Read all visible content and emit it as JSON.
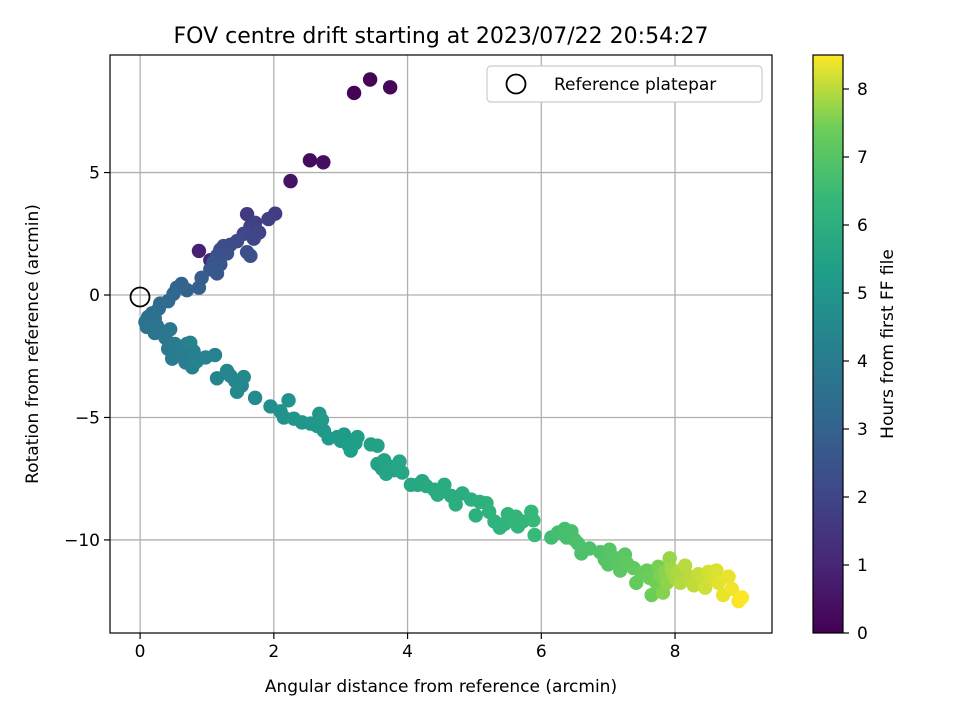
{
  "chart_data": {
    "type": "scatter",
    "title": "FOV centre drift starting at 2023/07/22 20:54:27",
    "xlabel": "Angular distance from reference (arcmin)",
    "ylabel": "Rotation from reference (arcmin)",
    "xlim": [
      -0.45,
      9.45
    ],
    "ylim": [
      -13.8,
      9.8
    ],
    "xticks": [
      0,
      2,
      4,
      6,
      8
    ],
    "xtick_labels": [
      "0",
      "2",
      "4",
      "6",
      "8"
    ],
    "yticks": [
      -10,
      -5,
      0,
      5
    ],
    "ytick_labels": [
      "−10",
      "−5",
      "0",
      "5"
    ],
    "grid": true,
    "legend": {
      "location": "upper right",
      "entries": [
        "Reference platepar"
      ]
    },
    "reference_point": {
      "name": "Reference platepar",
      "x": 0,
      "y": 0
    },
    "colorbar": {
      "label": "Hours from first FF file",
      "colormap": "viridis",
      "range": [
        0,
        8.5
      ],
      "ticks": [
        0,
        1,
        2,
        3,
        4,
        5,
        6,
        7,
        8
      ],
      "tick_labels": [
        "0",
        "1",
        "2",
        "3",
        "4",
        "5",
        "6",
        "7",
        "8"
      ]
    },
    "points": [
      {
        "x": 3.2,
        "y": 8.25,
        "t": 0.05
      },
      {
        "x": 3.44,
        "y": 8.8,
        "t": 0.1
      },
      {
        "x": 3.74,
        "y": 8.48,
        "t": 0.15
      },
      {
        "x": 2.54,
        "y": 5.5,
        "t": 0.3
      },
      {
        "x": 2.74,
        "y": 5.42,
        "t": 0.35
      },
      {
        "x": 2.25,
        "y": 4.65,
        "t": 0.45
      },
      {
        "x": 0.88,
        "y": 1.8,
        "t": 0.9
      },
      {
        "x": 1.05,
        "y": 1.42,
        "t": 1.0
      },
      {
        "x": 1.6,
        "y": 3.3,
        "t": 1.6
      },
      {
        "x": 2.02,
        "y": 3.32,
        "t": 1.75
      },
      {
        "x": 1.92,
        "y": 3.1,
        "t": 1.8
      },
      {
        "x": 1.72,
        "y": 2.95,
        "t": 1.85
      },
      {
        "x": 1.65,
        "y": 2.8,
        "t": 1.9
      },
      {
        "x": 1.78,
        "y": 2.55,
        "t": 2.0
      },
      {
        "x": 1.7,
        "y": 2.3,
        "t": 2.05
      },
      {
        "x": 1.55,
        "y": 2.5,
        "t": 2.1
      },
      {
        "x": 1.45,
        "y": 2.2,
        "t": 2.15
      },
      {
        "x": 1.35,
        "y": 2.05,
        "t": 2.2
      },
      {
        "x": 1.25,
        "y": 2.0,
        "t": 2.25
      },
      {
        "x": 1.2,
        "y": 1.85,
        "t": 2.3
      },
      {
        "x": 1.6,
        "y": 1.75,
        "t": 2.3
      },
      {
        "x": 1.65,
        "y": 1.6,
        "t": 2.35
      },
      {
        "x": 1.3,
        "y": 1.7,
        "t": 2.4
      },
      {
        "x": 1.15,
        "y": 1.6,
        "t": 2.45
      },
      {
        "x": 1.1,
        "y": 1.35,
        "t": 2.5
      },
      {
        "x": 1.2,
        "y": 1.25,
        "t": 2.55
      },
      {
        "x": 1.05,
        "y": 1.05,
        "t": 2.6
      },
      {
        "x": 1.15,
        "y": 0.88,
        "t": 2.65
      },
      {
        "x": 0.92,
        "y": 0.7,
        "t": 2.8
      },
      {
        "x": 0.88,
        "y": 0.3,
        "t": 2.9
      },
      {
        "x": 0.7,
        "y": 0.2,
        "t": 3.0
      },
      {
        "x": 0.62,
        "y": 0.45,
        "t": 3.05
      },
      {
        "x": 0.55,
        "y": 0.3,
        "t": 3.1
      },
      {
        "x": 0.5,
        "y": 0.05,
        "t": 3.15
      },
      {
        "x": 0.42,
        "y": -0.25,
        "t": 3.25
      },
      {
        "x": 0.3,
        "y": -0.35,
        "t": 3.35
      },
      {
        "x": 0.28,
        "y": -0.55,
        "t": 3.4
      },
      {
        "x": 0.18,
        "y": -0.75,
        "t": 3.45
      },
      {
        "x": 0.22,
        "y": -0.95,
        "t": 3.5
      },
      {
        "x": 0.12,
        "y": -0.9,
        "t": 3.55
      },
      {
        "x": 0.08,
        "y": -1.1,
        "t": 3.6
      },
      {
        "x": 0.1,
        "y": -1.3,
        "t": 3.65
      },
      {
        "x": 0.25,
        "y": -1.25,
        "t": 3.7
      },
      {
        "x": 0.22,
        "y": -1.55,
        "t": 3.75
      },
      {
        "x": 0.35,
        "y": -1.5,
        "t": 3.75
      },
      {
        "x": 0.38,
        "y": -1.75,
        "t": 3.8
      },
      {
        "x": 0.45,
        "y": -1.4,
        "t": 3.85
      },
      {
        "x": 0.42,
        "y": -2.2,
        "t": 3.9
      },
      {
        "x": 0.52,
        "y": -2.0,
        "t": 3.95
      },
      {
        "x": 0.58,
        "y": -2.3,
        "t": 4.0
      },
      {
        "x": 0.48,
        "y": -2.6,
        "t": 4.0
      },
      {
        "x": 0.65,
        "y": -2.1,
        "t": 4.05
      },
      {
        "x": 0.7,
        "y": -2.0,
        "t": 4.05
      },
      {
        "x": 0.72,
        "y": -2.45,
        "t": 4.1
      },
      {
        "x": 0.68,
        "y": -2.75,
        "t": 4.1
      },
      {
        "x": 0.78,
        "y": -2.95,
        "t": 4.15
      },
      {
        "x": 0.8,
        "y": -2.3,
        "t": 4.15
      },
      {
        "x": 0.85,
        "y": -2.7,
        "t": 4.2
      },
      {
        "x": 0.98,
        "y": -2.55,
        "t": 4.2
      },
      {
        "x": 1.12,
        "y": -2.45,
        "t": 4.25
      },
      {
        "x": 0.75,
        "y": -1.95,
        "t": 4.3
      },
      {
        "x": 1.15,
        "y": -3.4,
        "t": 4.35
      },
      {
        "x": 1.3,
        "y": -3.1,
        "t": 4.4
      },
      {
        "x": 1.35,
        "y": -3.3,
        "t": 4.4
      },
      {
        "x": 1.42,
        "y": -3.5,
        "t": 4.45
      },
      {
        "x": 1.52,
        "y": -3.7,
        "t": 4.45
      },
      {
        "x": 1.45,
        "y": -3.95,
        "t": 4.5
      },
      {
        "x": 1.55,
        "y": -3.35,
        "t": 4.5
      },
      {
        "x": 1.72,
        "y": -4.2,
        "t": 4.6
      },
      {
        "x": 1.95,
        "y": -4.55,
        "t": 4.75
      },
      {
        "x": 2.1,
        "y": -4.75,
        "t": 4.85
      },
      {
        "x": 2.22,
        "y": -4.3,
        "t": 4.85
      },
      {
        "x": 2.15,
        "y": -5.0,
        "t": 4.9
      },
      {
        "x": 2.3,
        "y": -5.05,
        "t": 4.95
      },
      {
        "x": 2.42,
        "y": -5.2,
        "t": 5.0
      },
      {
        "x": 2.55,
        "y": -5.25,
        "t": 5.0
      },
      {
        "x": 2.65,
        "y": -5.35,
        "t": 5.05
      },
      {
        "x": 2.68,
        "y": -4.85,
        "t": 5.05
      },
      {
        "x": 2.72,
        "y": -5.1,
        "t": 5.1
      },
      {
        "x": 2.75,
        "y": -5.55,
        "t": 5.1
      },
      {
        "x": 2.82,
        "y": -5.85,
        "t": 5.15
      },
      {
        "x": 2.95,
        "y": -5.8,
        "t": 5.2
      },
      {
        "x": 3.0,
        "y": -5.95,
        "t": 5.25
      },
      {
        "x": 3.05,
        "y": -5.7,
        "t": 5.25
      },
      {
        "x": 3.12,
        "y": -6.15,
        "t": 5.3
      },
      {
        "x": 3.15,
        "y": -6.35,
        "t": 5.3
      },
      {
        "x": 3.22,
        "y": -6.05,
        "t": 5.35
      },
      {
        "x": 3.25,
        "y": -5.8,
        "t": 5.35
      },
      {
        "x": 3.45,
        "y": -6.1,
        "t": 5.45
      },
      {
        "x": 3.55,
        "y": -6.15,
        "t": 5.45
      },
      {
        "x": 3.55,
        "y": -6.9,
        "t": 5.5
      },
      {
        "x": 3.62,
        "y": -7.1,
        "t": 5.5
      },
      {
        "x": 3.65,
        "y": -6.75,
        "t": 5.55
      },
      {
        "x": 3.72,
        "y": -7.0,
        "t": 5.55
      },
      {
        "x": 3.68,
        "y": -7.3,
        "t": 5.6
      },
      {
        "x": 3.8,
        "y": -7.15,
        "t": 5.6
      },
      {
        "x": 3.92,
        "y": -7.25,
        "t": 5.65
      },
      {
        "x": 3.88,
        "y": -6.8,
        "t": 5.65
      },
      {
        "x": 4.05,
        "y": -7.75,
        "t": 5.7
      },
      {
        "x": 4.15,
        "y": -7.75,
        "t": 5.75
      },
      {
        "x": 4.22,
        "y": -7.6,
        "t": 5.75
      },
      {
        "x": 4.28,
        "y": -7.8,
        "t": 5.8
      },
      {
        "x": 4.4,
        "y": -7.95,
        "t": 5.8
      },
      {
        "x": 4.45,
        "y": -8.15,
        "t": 5.85
      },
      {
        "x": 4.52,
        "y": -8.0,
        "t": 5.85
      },
      {
        "x": 4.55,
        "y": -7.75,
        "t": 5.9
      },
      {
        "x": 4.65,
        "y": -8.2,
        "t": 5.9
      },
      {
        "x": 4.72,
        "y": -8.55,
        "t": 5.95
      },
      {
        "x": 4.82,
        "y": -8.1,
        "t": 5.95
      },
      {
        "x": 4.95,
        "y": -8.35,
        "t": 6.0
      },
      {
        "x": 5.02,
        "y": -9.0,
        "t": 6.05
      },
      {
        "x": 5.08,
        "y": -8.45,
        "t": 6.05
      },
      {
        "x": 5.18,
        "y": -8.5,
        "t": 6.1
      },
      {
        "x": 5.22,
        "y": -8.85,
        "t": 6.15
      },
      {
        "x": 5.3,
        "y": -9.25,
        "t": 6.15
      },
      {
        "x": 5.38,
        "y": -9.5,
        "t": 6.2
      },
      {
        "x": 5.45,
        "y": -9.35,
        "t": 6.2
      },
      {
        "x": 5.5,
        "y": -8.95,
        "t": 6.25
      },
      {
        "x": 5.55,
        "y": -9.15,
        "t": 6.25
      },
      {
        "x": 5.62,
        "y": -9.05,
        "t": 6.3
      },
      {
        "x": 5.65,
        "y": -9.45,
        "t": 6.3
      },
      {
        "x": 5.72,
        "y": -9.25,
        "t": 6.35
      },
      {
        "x": 5.85,
        "y": -8.85,
        "t": 6.4
      },
      {
        "x": 5.88,
        "y": -9.2,
        "t": 6.4
      },
      {
        "x": 5.9,
        "y": -9.8,
        "t": 6.45
      },
      {
        "x": 6.15,
        "y": -9.9,
        "t": 6.6
      },
      {
        "x": 6.25,
        "y": -9.7,
        "t": 6.65
      },
      {
        "x": 6.35,
        "y": -9.55,
        "t": 6.7
      },
      {
        "x": 6.38,
        "y": -9.9,
        "t": 6.7
      },
      {
        "x": 6.45,
        "y": -9.65,
        "t": 6.75
      },
      {
        "x": 6.5,
        "y": -10.0,
        "t": 6.75
      },
      {
        "x": 6.55,
        "y": -10.15,
        "t": 6.8
      },
      {
        "x": 6.6,
        "y": -10.55,
        "t": 6.8
      },
      {
        "x": 6.72,
        "y": -10.35,
        "t": 6.85
      },
      {
        "x": 6.88,
        "y": -10.5,
        "t": 6.9
      },
      {
        "x": 6.95,
        "y": -10.8,
        "t": 6.95
      },
      {
        "x": 7.0,
        "y": -11.0,
        "t": 7.0
      },
      {
        "x": 7.02,
        "y": -10.4,
        "t": 7.0
      },
      {
        "x": 7.12,
        "y": -10.75,
        "t": 7.05
      },
      {
        "x": 7.18,
        "y": -11.25,
        "t": 7.1
      },
      {
        "x": 7.25,
        "y": -10.6,
        "t": 7.1
      },
      {
        "x": 7.28,
        "y": -10.95,
        "t": 7.15
      },
      {
        "x": 7.38,
        "y": -11.15,
        "t": 7.2
      },
      {
        "x": 7.42,
        "y": -11.75,
        "t": 7.25
      },
      {
        "x": 7.5,
        "y": -11.35,
        "t": 7.3
      },
      {
        "x": 7.58,
        "y": -11.25,
        "t": 7.3
      },
      {
        "x": 7.62,
        "y": -11.55,
        "t": 7.35
      },
      {
        "x": 7.65,
        "y": -12.25,
        "t": 7.4
      },
      {
        "x": 7.72,
        "y": -11.75,
        "t": 7.45
      },
      {
        "x": 7.75,
        "y": -11.1,
        "t": 7.5
      },
      {
        "x": 7.78,
        "y": -11.45,
        "t": 7.55
      },
      {
        "x": 7.82,
        "y": -12.15,
        "t": 7.6
      },
      {
        "x": 7.85,
        "y": -11.3,
        "t": 7.65
      },
      {
        "x": 7.88,
        "y": -11.75,
        "t": 7.7
      },
      {
        "x": 7.92,
        "y": -10.75,
        "t": 7.75
      },
      {
        "x": 7.95,
        "y": -11.2,
        "t": 7.8
      },
      {
        "x": 8.0,
        "y": -11.55,
        "t": 7.85
      },
      {
        "x": 8.05,
        "y": -11.3,
        "t": 7.9
      },
      {
        "x": 8.08,
        "y": -11.75,
        "t": 7.95
      },
      {
        "x": 8.15,
        "y": -11.05,
        "t": 8.0
      },
      {
        "x": 8.22,
        "y": -11.5,
        "t": 8.0
      },
      {
        "x": 8.28,
        "y": -11.85,
        "t": 8.05
      },
      {
        "x": 8.35,
        "y": -11.4,
        "t": 8.1
      },
      {
        "x": 8.42,
        "y": -11.6,
        "t": 8.1
      },
      {
        "x": 8.45,
        "y": -11.95,
        "t": 8.15
      },
      {
        "x": 8.5,
        "y": -11.3,
        "t": 8.2
      },
      {
        "x": 8.55,
        "y": -11.55,
        "t": 8.2
      },
      {
        "x": 8.62,
        "y": -11.25,
        "t": 8.25
      },
      {
        "x": 8.65,
        "y": -11.75,
        "t": 8.3
      },
      {
        "x": 8.72,
        "y": -12.25,
        "t": 8.35
      },
      {
        "x": 8.8,
        "y": -11.5,
        "t": 8.35
      },
      {
        "x": 8.85,
        "y": -12.0,
        "t": 8.4
      },
      {
        "x": 8.95,
        "y": -12.5,
        "t": 8.45
      },
      {
        "x": 9.0,
        "y": -12.35,
        "t": 8.5
      }
    ]
  }
}
